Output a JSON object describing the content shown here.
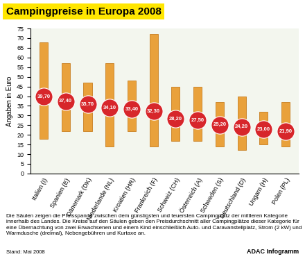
{
  "chart_data": {
    "type": "bar",
    "title": "Campingpreise in Europa 2008",
    "y_label": "Angaben in Euro",
    "categories": [
      "Italien (I)",
      "Spanien (E)",
      "Dänemark (DK)",
      "Niederlande (NL)",
      "Kroatien (HR)",
      "Frankreich (F)",
      "Schweiz (CH)",
      "Österreich (A)",
      "Schweden (S)",
      "Deutschland (D)",
      "Ungarn (H)",
      "Polen (PL)"
    ],
    "low": [
      18,
      22,
      22,
      14,
      22,
      14,
      17,
      17,
      14,
      12,
      15,
      14
    ],
    "high": [
      68,
      57,
      47,
      57,
      48,
      72,
      45,
      45,
      37,
      40,
      32,
      37
    ],
    "values": [
      39.7,
      37.4,
      35.7,
      34.1,
      33.4,
      32.3,
      28.2,
      27.5,
      25.2,
      24.2,
      23.0,
      21.9
    ],
    "value_labels": [
      "39,70",
      "37,40",
      "35,70",
      "34,10",
      "33,40",
      "32,30",
      "28,20",
      "27,50",
      "25,20",
      "24,20",
      "23,00",
      "21,90"
    ],
    "data_labels": true,
    "color": "#e9a13b",
    "marker_color": "#d7262b",
    "ylim": [
      0,
      75
    ],
    "yticks": [
      0,
      5,
      10,
      15,
      20,
      25,
      30,
      35,
      40,
      45,
      50,
      55,
      60,
      65,
      70,
      75
    ],
    "grid": false,
    "caption": "Die Säulen zeigen die Preisspanne zwischen dem günstigsten und teuersten Campingplatz der mittleren Kategorie innerhalb des Landes. Die Kreise auf den Säulen geben den Preisdurchschnitt aller Campingplätze dieser Kategorie für eine Übernachtung von zwei Erwachsenen und einem Kind einschließlich Auto- und Caravanstellplatz, Strom (2 kW) und Warmdusche (dreimal), Nebengebühren und Kurtaxe an.",
    "footer_left": "Stand: Mai 2008",
    "footer_right": "ADAC Infogramm"
  }
}
